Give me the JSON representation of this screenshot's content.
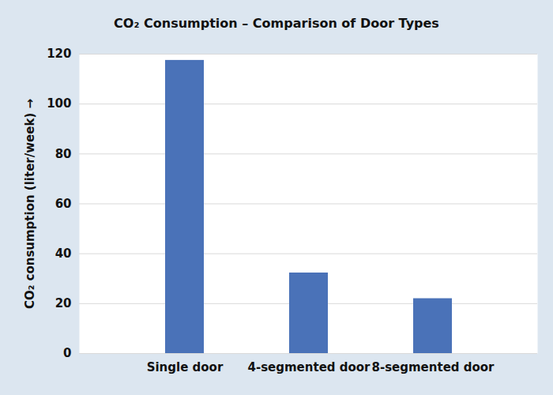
{
  "chart_data": {
    "type": "bar",
    "title": "CO₂ Consumption – Comparison of Door Types",
    "y_label": "CO₂ consumption (liter/week)",
    "categories": [
      "Single door",
      "4-segmented door",
      "8-segmented door"
    ],
    "values": [
      117.5,
      32.3,
      22
    ],
    "color": "#4a72b8",
    "ylim": [
      0,
      120
    ],
    "yticks": [
      0,
      20,
      40,
      60,
      80,
      100,
      120
    ],
    "grid": true
  }
}
